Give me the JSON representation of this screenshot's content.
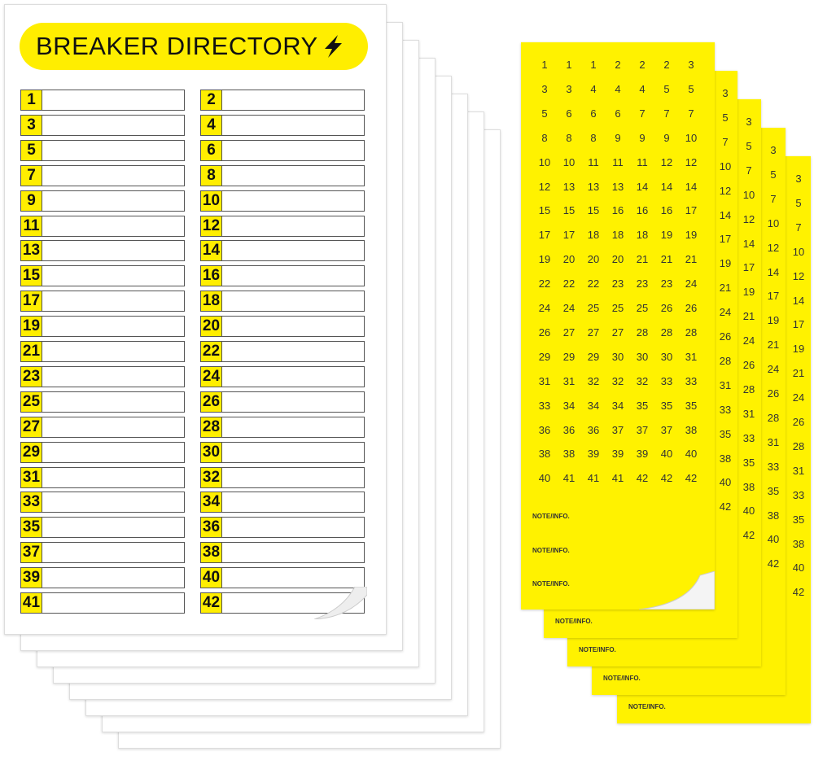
{
  "directory": {
    "title": "BREAKER DIRECTORY",
    "icon": "lightning-bolt-icon",
    "slots": [
      "1",
      "2",
      "3",
      "4",
      "5",
      "6",
      "7",
      "8",
      "9",
      "10",
      "11",
      "12",
      "13",
      "14",
      "15",
      "16",
      "17",
      "18",
      "19",
      "20",
      "21",
      "22",
      "23",
      "24",
      "25",
      "26",
      "27",
      "28",
      "29",
      "30",
      "31",
      "32",
      "33",
      "34",
      "35",
      "36",
      "37",
      "38",
      "39",
      "40",
      "41",
      "42"
    ]
  },
  "labels_sheet": {
    "grid": [
      [
        "1",
        "1",
        "1",
        "2",
        "2",
        "2",
        "3"
      ],
      [
        "3",
        "3",
        "4",
        "4",
        "4",
        "5",
        "5"
      ],
      [
        "5",
        "6",
        "6",
        "6",
        "7",
        "7",
        "7"
      ],
      [
        "8",
        "8",
        "8",
        "9",
        "9",
        "9",
        "10"
      ],
      [
        "10",
        "10",
        "11",
        "11",
        "11",
        "12",
        "12"
      ],
      [
        "12",
        "13",
        "13",
        "13",
        "14",
        "14",
        "14"
      ],
      [
        "15",
        "15",
        "15",
        "16",
        "16",
        "16",
        "17"
      ],
      [
        "17",
        "17",
        "18",
        "18",
        "18",
        "19",
        "19"
      ],
      [
        "19",
        "20",
        "20",
        "20",
        "21",
        "21",
        "21"
      ],
      [
        "22",
        "22",
        "22",
        "23",
        "23",
        "23",
        "24"
      ],
      [
        "24",
        "24",
        "25",
        "25",
        "25",
        "26",
        "26"
      ],
      [
        "26",
        "27",
        "27",
        "27",
        "28",
        "28",
        "28"
      ],
      [
        "29",
        "29",
        "29",
        "30",
        "30",
        "30",
        "31"
      ],
      [
        "31",
        "31",
        "32",
        "32",
        "32",
        "33",
        "33"
      ],
      [
        "33",
        "34",
        "34",
        "34",
        "35",
        "35",
        "35"
      ],
      [
        "36",
        "36",
        "36",
        "37",
        "37",
        "37",
        "38"
      ],
      [
        "38",
        "38",
        "39",
        "39",
        "39",
        "40",
        "40"
      ],
      [
        "40",
        "41",
        "41",
        "41",
        "42",
        "42",
        "42"
      ]
    ],
    "note_label": "NOTE/INFO."
  },
  "colors": {
    "yellow": "#ffee00",
    "label_yellow": "#fff200"
  }
}
